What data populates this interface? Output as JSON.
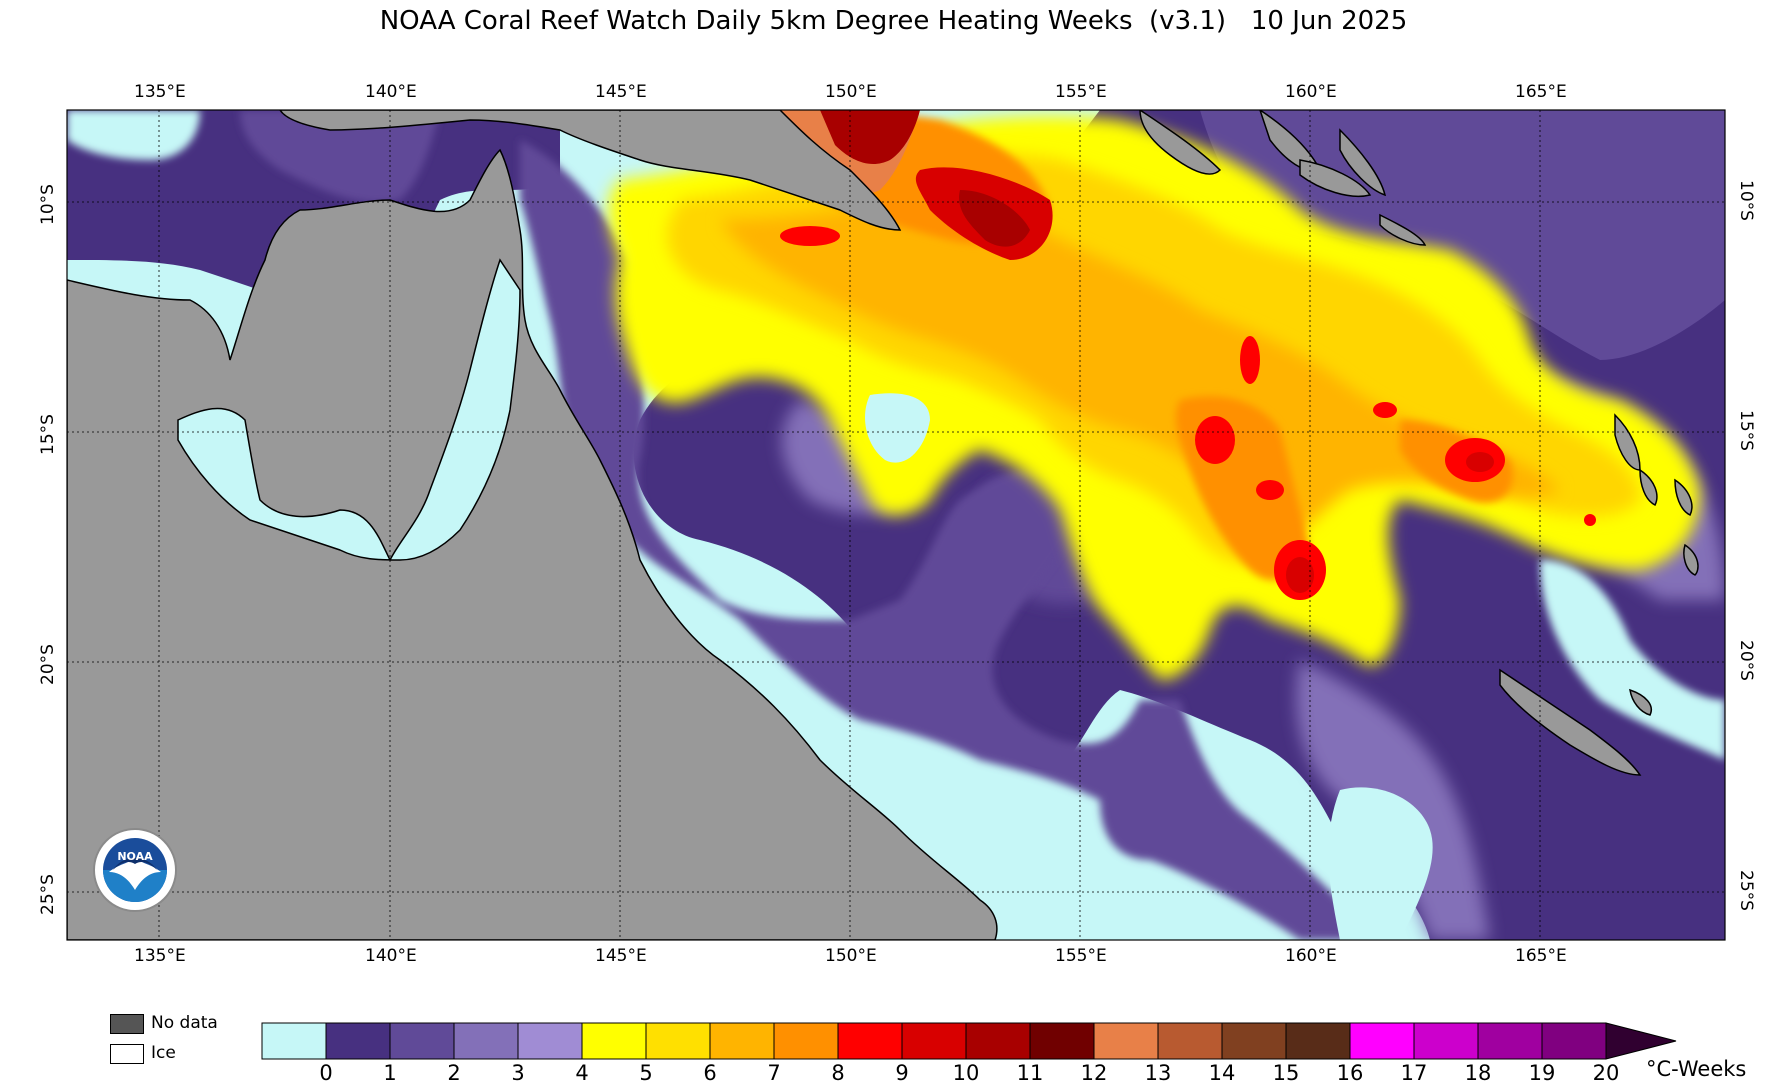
{
  "title": "NOAA Coral Reef Watch Daily 5km Degree Heating Weeks  (v3.1)   10 Jun 2025",
  "map": {
    "lon_ticks": [
      "135°E",
      "140°E",
      "145°E",
      "150°E",
      "155°E",
      "160°E",
      "165°E"
    ],
    "lat_ticks": [
      "10°S",
      "15°S",
      "20°S",
      "25°S"
    ],
    "land_color": "#999999",
    "ocean_low_color": "#c6f7f7"
  },
  "legend": {
    "no_data_label": "No data",
    "ice_label": "Ice",
    "no_data_color": "#555555",
    "ice_color": "#ffffff",
    "units": "°C-Weeks",
    "ticks": [
      "0",
      "1",
      "2",
      "3",
      "4",
      "5",
      "6",
      "7",
      "8",
      "9",
      "10",
      "11",
      "12",
      "13",
      "14",
      "15",
      "16",
      "17",
      "18",
      "19",
      "20"
    ],
    "colors": [
      "#c6f7f7",
      "#473080",
      "#604a98",
      "#8370b8",
      "#a08cd4",
      "#ffff00",
      "#ffe000",
      "#ffb400",
      "#ff9000",
      "#ff0000",
      "#d80000",
      "#a80000",
      "#700000",
      "#e88048",
      "#b85a30",
      "#804020",
      "#582c18",
      "#ff00ff",
      "#cc00cc",
      "#a000a0",
      "#800080"
    ],
    "extend_color": "#300030"
  },
  "logo": {
    "text": "NOAA",
    "icon": "noaa-logo"
  }
}
